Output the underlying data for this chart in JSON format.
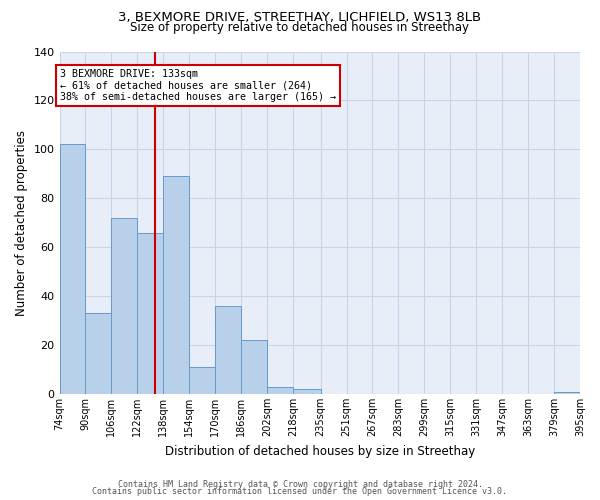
{
  "title_line1": "3, BEXMORE DRIVE, STREETHAY, LICHFIELD, WS13 8LB",
  "title_line2": "Size of property relative to detached houses in Streethay",
  "xlabel": "Distribution of detached houses by size in Streethay",
  "ylabel": "Number of detached properties",
  "annotation_line1": "3 BEXMORE DRIVE: 133sqm",
  "annotation_line2": "← 61% of detached houses are smaller (264)",
  "annotation_line3": "38% of semi-detached houses are larger (165) →",
  "property_size": 133,
  "bin_edges": [
    74,
    90,
    106,
    122,
    138,
    154,
    170,
    186,
    202,
    218,
    235,
    251,
    267,
    283,
    299,
    315,
    331,
    347,
    363,
    379,
    395
  ],
  "bar_heights": [
    102,
    33,
    72,
    66,
    89,
    11,
    36,
    22,
    3,
    2,
    0,
    0,
    0,
    0,
    0,
    0,
    0,
    0,
    0,
    1
  ],
  "bar_color": "#b8d0ea",
  "bar_edge_color": "#6699cc",
  "vline_color": "#cc0000",
  "vline_x": 133,
  "box_color": "#cc0000",
  "grid_color": "#c8d4e8",
  "background_color": "#e8eef8",
  "ylim": [
    0,
    140
  ],
  "yticks": [
    0,
    20,
    40,
    60,
    80,
    100,
    120,
    140
  ],
  "footer_line1": "Contains HM Land Registry data © Crown copyright and database right 2024.",
  "footer_line2": "Contains public sector information licensed under the Open Government Licence v3.0."
}
